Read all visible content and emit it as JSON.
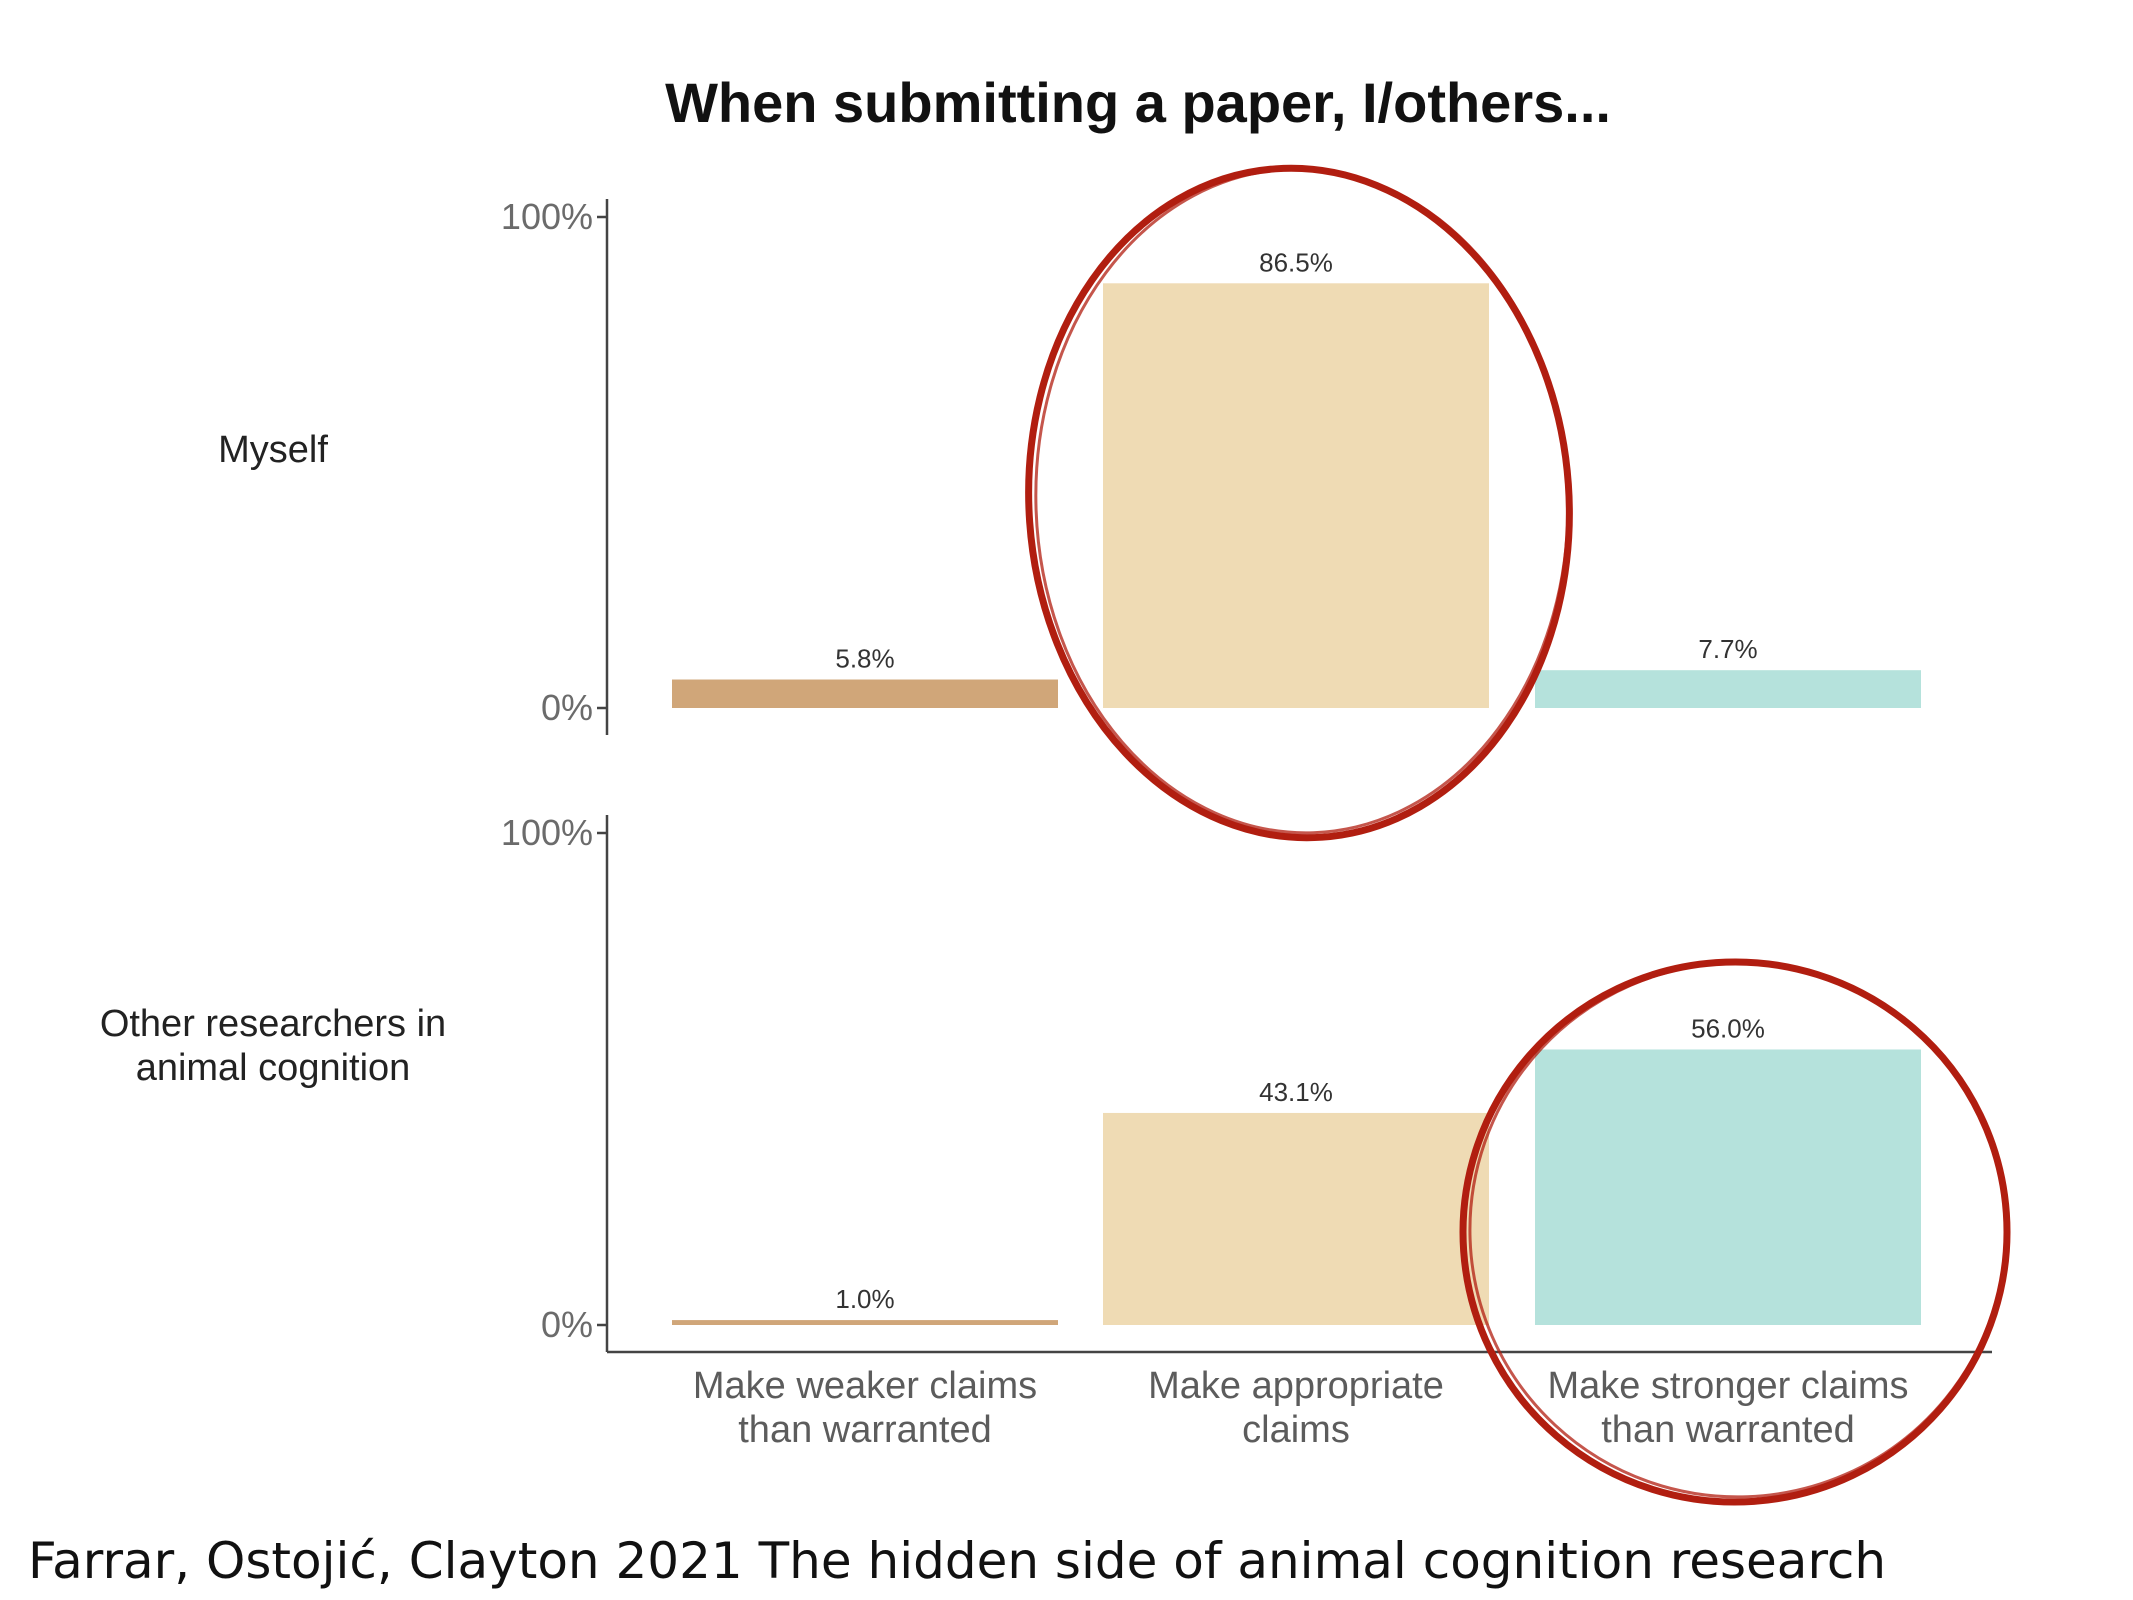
{
  "chart_data": {
    "type": "bar",
    "title": "When submitting a paper, I/others...",
    "categories": [
      [
        "Make weaker claims",
        "than warranted"
      ],
      [
        "Make appropriate",
        "claims"
      ],
      [
        "Make stronger claims",
        "than warranted"
      ]
    ],
    "ylim": [
      0,
      100
    ],
    "yticks": [
      "0%",
      "100%"
    ],
    "facets": [
      {
        "label": [
          "Myself"
        ],
        "values": [
          5.8,
          86.5,
          7.7
        ],
        "value_labels": [
          "5.8%",
          "86.5%",
          "7.7%"
        ]
      },
      {
        "label": [
          "Other researchers in",
          "animal cognition"
        ],
        "values": [
          1.0,
          43.1,
          56.0
        ],
        "value_labels": [
          "1.0%",
          "43.1%",
          "56.0%"
        ]
      }
    ],
    "colors": [
      "#d0a679",
      "#efdbb4",
      "#b5e2dc"
    ],
    "highlights": [
      {
        "facet": 0,
        "category": 1
      },
      {
        "facet": 1,
        "category": 2
      }
    ],
    "highlight_color": "#b11e10",
    "legend": "none",
    "grid": false
  },
  "citation": "Farrar, Ostojić, Clayton 2021 The hidden side of animal cognition research"
}
